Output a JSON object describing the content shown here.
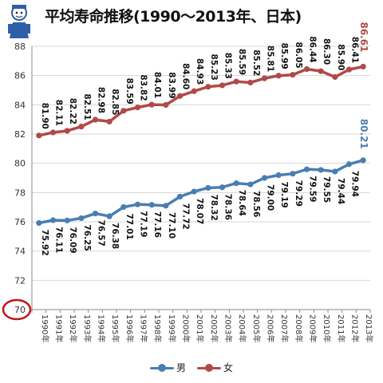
{
  "title": "平均寿命推移(1990〜2013年、日本)",
  "colors": {
    "male": "#4a7eb0",
    "female": "#b04a48",
    "axis_marker": "#c0141b"
  },
  "chart_data": {
    "type": "line",
    "categories": [
      "1990年",
      "1991年",
      "1992年",
      "1993年",
      "1994年",
      "1995年",
      "1996年",
      "1997年",
      "1998年",
      "1999年",
      "2000年",
      "2001年",
      "2002年",
      "2003年",
      "2004年",
      "2005年",
      "2006年",
      "2007年",
      "2008年",
      "2009年",
      "2010年",
      "2011年",
      "2012年",
      "2013年"
    ],
    "series": [
      {
        "name": "男",
        "color": "#4a7eb0",
        "values": [
          75.92,
          76.11,
          76.09,
          76.25,
          76.57,
          76.38,
          77.01,
          77.19,
          77.16,
          77.1,
          77.72,
          78.07,
          78.32,
          78.36,
          78.64,
          78.56,
          79.0,
          79.19,
          79.29,
          79.59,
          79.55,
          79.44,
          79.94,
          80.21
        ],
        "labels": [
          "75.92",
          "76.11",
          "76.09",
          "76.25",
          "76.57",
          "76.38",
          "77.01",
          "77.19",
          "77.16",
          "77.10",
          "77.72",
          "78.07",
          "78.32",
          "78.36",
          "78.64",
          "78.56",
          "79.00",
          "79.19",
          "79.29",
          "79.59",
          "79.55",
          "79.44",
          "79.94",
          "80.21"
        ]
      },
      {
        "name": "女",
        "color": "#b04a48",
        "values": [
          81.9,
          82.11,
          82.22,
          82.51,
          82.98,
          82.85,
          83.59,
          83.82,
          84.01,
          83.99,
          84.6,
          84.93,
          85.23,
          85.33,
          85.59,
          85.52,
          85.81,
          85.99,
          86.05,
          86.44,
          86.3,
          85.9,
          86.41,
          86.61
        ],
        "labels": [
          "81.90",
          "82.11",
          "82.22",
          "82.51",
          "82.98",
          "82.85",
          "83.59",
          "83.82",
          "84.01",
          "83.99",
          "84.60",
          "84.93",
          "85.23",
          "85.33",
          "85.59",
          "85.52",
          "85.81",
          "85.99",
          "86.05",
          "86.44",
          "86.30",
          "85.90",
          "86.41",
          "86.61"
        ]
      }
    ],
    "ylim": [
      70,
      88
    ],
    "yticks": [
      "70",
      "72",
      "74",
      "76",
      "78",
      "80",
      "82",
      "84",
      "86",
      "88"
    ],
    "grid": true,
    "legend_position": "bottom",
    "legend": [
      "男",
      "女"
    ]
  }
}
